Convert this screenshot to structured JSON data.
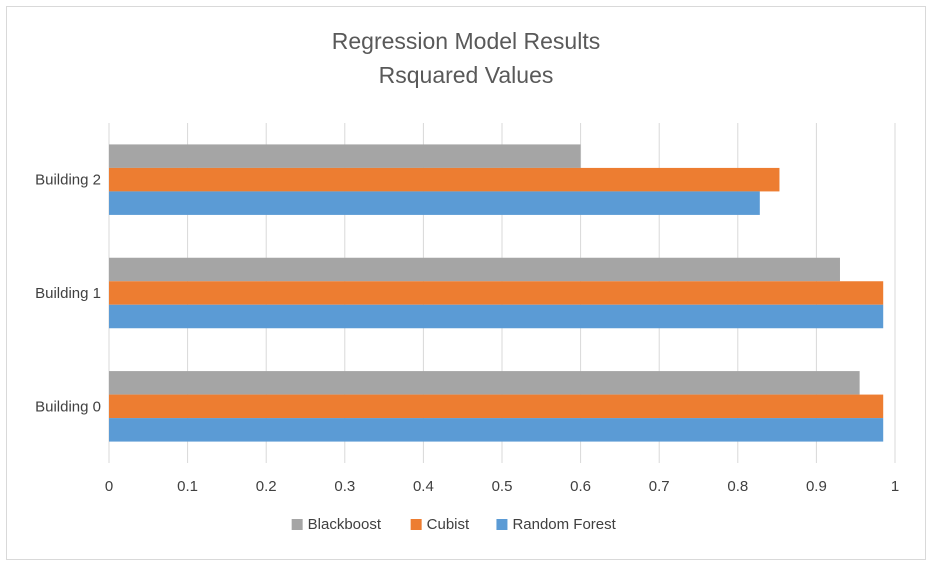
{
  "chart_data": {
    "type": "bar",
    "orientation": "horizontal",
    "title": [
      "Regression Model Results",
      "Rsquared Values"
    ],
    "categories": [
      "Building 0",
      "Building 1",
      "Building 2"
    ],
    "series": [
      {
        "name": "Blackboost",
        "color": "#a5a5a5",
        "values": [
          0.955,
          0.93,
          0.6
        ]
      },
      {
        "name": "Cubist",
        "color": "#ed7d31",
        "values": [
          0.985,
          0.985,
          0.853
        ]
      },
      {
        "name": "Random Forest",
        "color": "#5b9bd5",
        "values": [
          0.985,
          0.985,
          0.828
        ]
      }
    ],
    "xlim": [
      0,
      1
    ],
    "xticks": [
      "0",
      "0.1",
      "0.2",
      "0.3",
      "0.4",
      "0.5",
      "0.6",
      "0.7",
      "0.8",
      "0.9",
      "1"
    ],
    "grid": "vertical",
    "legend": "bottom"
  }
}
